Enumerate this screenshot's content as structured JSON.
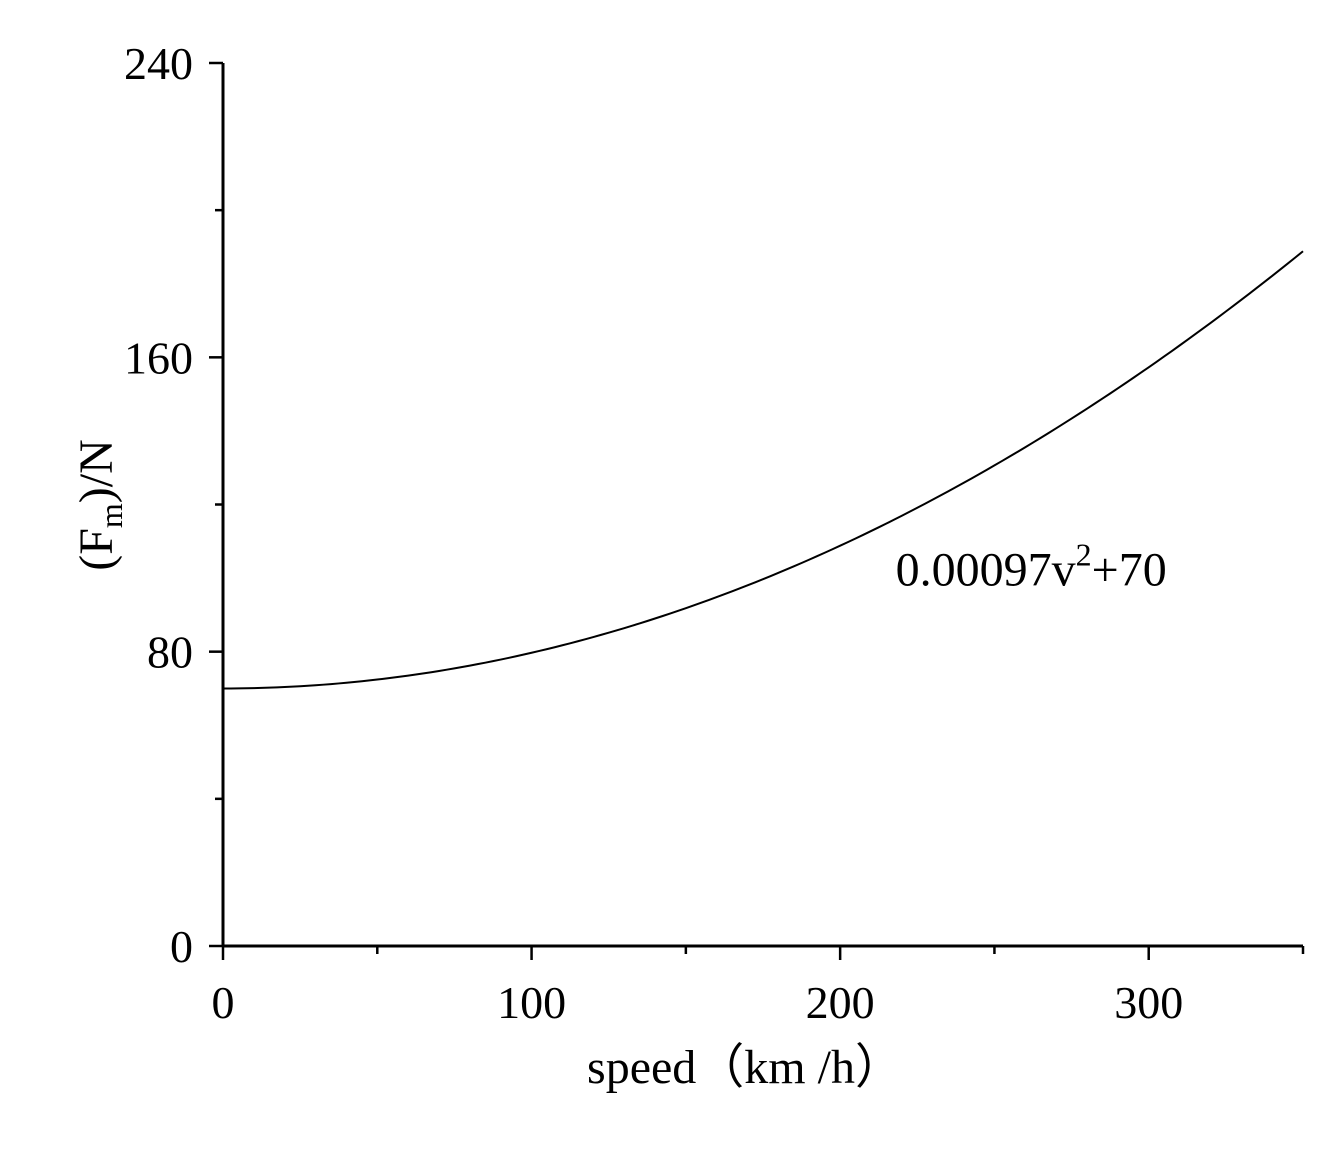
{
  "chart_data": {
    "type": "line",
    "title": "",
    "xlabel": "speed（km /h）",
    "ylabel": "(Fm)/N",
    "ylabel_parts": {
      "open": "(F",
      "sub": "m",
      "close": ")/N"
    },
    "xlim": [
      0,
      350
    ],
    "ylim": [
      0,
      240
    ],
    "x_major_ticks": [
      0,
      100,
      200,
      300
    ],
    "x_minor_ticks": [
      50,
      150,
      250,
      350
    ],
    "y_major_ticks": [
      0,
      80,
      160,
      240
    ],
    "y_minor_ticks": [
      40,
      120,
      200
    ],
    "x_tick_labels": [
      "0",
      "100",
      "200",
      "300"
    ],
    "y_tick_labels": [
      "0",
      "80",
      "160",
      "240"
    ],
    "grid": false,
    "legend": "none",
    "series": [
      {
        "formula": {
          "a": 0.00097,
          "c": 70
        },
        "x": [
          0,
          50,
          100,
          150,
          200,
          250,
          300,
          350
        ],
        "y": [
          70,
          72.4,
          79.7,
          91.8,
          108.8,
          130.6,
          157.3,
          188.8
        ],
        "color": "#000000"
      }
    ],
    "annotations": [
      {
        "text": "0.00097v",
        "sup": "2",
        "suffix": "+70",
        "x": 218,
        "y": 98
      }
    ]
  }
}
